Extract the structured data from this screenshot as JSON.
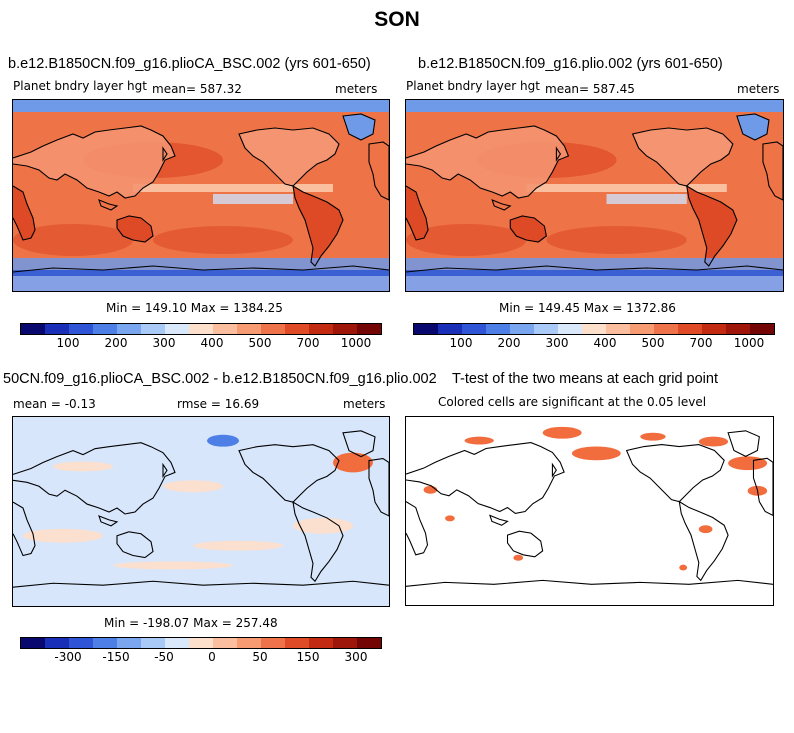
{
  "title": "SON",
  "panels": {
    "plioCA": {
      "case_title": "b.e12.B1850CN.f09_g16.plioCA_BSC.002 (yrs 601-650)",
      "variable": "Planet bndry layer hgt",
      "mean_text": "mean= 587.32",
      "units": "meters",
      "minmax_text": "Min = 149.10 Max = 1384.25"
    },
    "plio": {
      "case_title": "b.e12.B1850CN.f09_g16.plio.002 (yrs 601-650)",
      "variable": "Planet bndry layer hgt",
      "mean_text": "mean= 587.45",
      "units": "meters",
      "minmax_text": "Min = 149.45 Max = 1372.86"
    },
    "diff": {
      "case_title": "50CN.f09_g16.plioCA_BSC.002 - b.e12.B1850CN.f09_g16.plio.002",
      "stats_mean": "mean =  -0.13",
      "stats_rmse": "rmse =  16.69",
      "units": "meters",
      "minmax_text": "Min = -198.07 Max = 257.48"
    },
    "ttest": {
      "title": "T-test of the two means at each grid point",
      "subtitle": "Colored cells are significant at the 0.05 level"
    }
  },
  "colorbars": {
    "absolute": {
      "colors": [
        "#08086e",
        "#1a2fb8",
        "#2f55d6",
        "#4d7fe6",
        "#7aa6f0",
        "#a9c9f7",
        "#d9e8fb",
        "#fde0cc",
        "#fbbfa0",
        "#f69b72",
        "#ee724a",
        "#df4a27",
        "#c22a12",
        "#9e160a",
        "#730505"
      ],
      "labels": [
        "100",
        "200",
        "300",
        "400",
        "500",
        "700",
        "1000"
      ]
    },
    "difference": {
      "colors": [
        "#08086e",
        "#1a2fb8",
        "#2f55d6",
        "#4d7fe6",
        "#7aa6f0",
        "#a9c9f7",
        "#d9e8fb",
        "#fde0cc",
        "#fbbfa0",
        "#f69b72",
        "#ee724a",
        "#df4a27",
        "#c22a12",
        "#9e160a",
        "#730505"
      ],
      "labels": [
        "-300",
        "-150",
        "-50",
        "0",
        "50",
        "150",
        "300"
      ]
    }
  },
  "fill_colors": {
    "ocean_warm": "#ee7448",
    "ocean_hot": "#de4a26",
    "ocean_mid": "#f49470",
    "equator_band": "#fbc8a8",
    "polar_blue": "#6f9ae8",
    "polar_deep": "#3b60d3",
    "land_light": "#cfe0f7",
    "diff_bg": "#d7e6fb",
    "diff_warm": "#fbe0d0",
    "signif": "#f26d3d"
  }
}
